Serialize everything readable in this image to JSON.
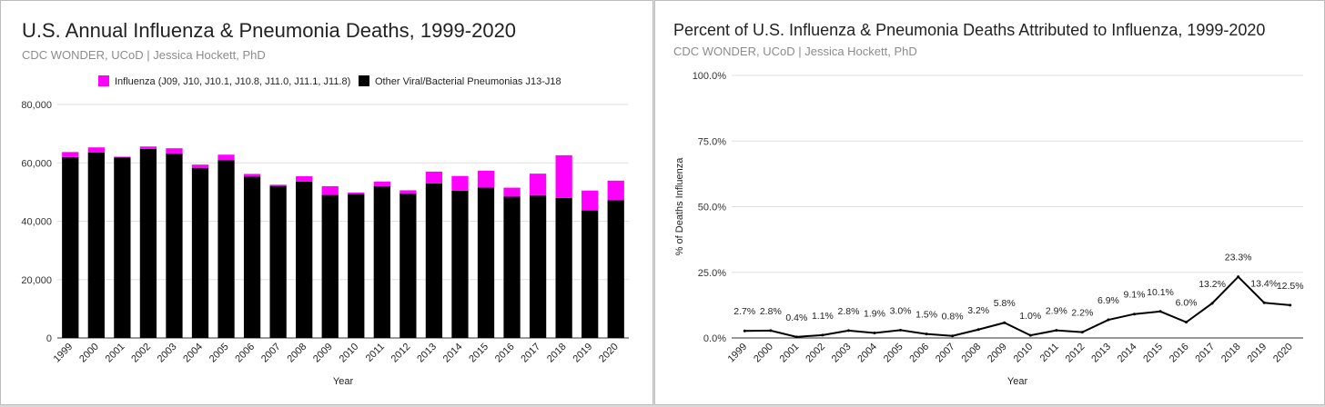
{
  "left": {
    "title": "U.S. Annual Influenza & Pneumonia Deaths, 1999-2020",
    "subtitle": "CDC WONDER, UCoD | Jessica Hockett, PhD"
  },
  "right": {
    "title": "Percent of U.S. Influenza & Pneumonia Deaths Attributed to Influenza, 1999-2020",
    "subtitle": "CDC WONDER, UCoD | Jessica Hockett, PhD"
  },
  "colors": {
    "influenza": "#ff00ff",
    "other": "#000000",
    "line": "#000000",
    "grid": "#e0e0e0"
  },
  "chart_data": [
    {
      "type": "bar",
      "stacked": true,
      "title": "U.S. Annual Influenza & Pneumonia Deaths, 1999-2020",
      "xlabel": "Year",
      "ylabel": "",
      "ylim": [
        0,
        80000
      ],
      "yticks": [
        "0",
        "20,000",
        "40,000",
        "60,000",
        "80,000"
      ],
      "legend_position": "top",
      "categories": [
        "1999",
        "2000",
        "2001",
        "2002",
        "2003",
        "2004",
        "2005",
        "2006",
        "2007",
        "2008",
        "2009",
        "2010",
        "2011",
        "2012",
        "2013",
        "2014",
        "2015",
        "2016",
        "2017",
        "2018",
        "2019",
        "2020"
      ],
      "series": [
        {
          "name": "Other Viral/Bacterial Pneumonias J13-J18",
          "values": [
            62000,
            63500,
            61800,
            64800,
            63200,
            58300,
            60900,
            55300,
            52100,
            53600,
            49000,
            49300,
            52000,
            49500,
            53000,
            50500,
            51500,
            48400,
            48900,
            48000,
            43700,
            47200
          ]
        },
        {
          "name": "Influenza (J09, J10, J10.1, J10.8, J11.0, J11.1, J11.8)",
          "values": [
            1700,
            1800,
            300,
            800,
            1800,
            1100,
            1900,
            900,
            400,
            1800,
            3000,
            500,
            1600,
            1100,
            4000,
            5000,
            5800,
            3100,
            7400,
            14600,
            6800,
            6700
          ]
        }
      ]
    },
    {
      "type": "line",
      "title": "Percent of U.S. Influenza & Pneumonia Deaths Attributed to Influenza, 1999-2020",
      "xlabel": "Year",
      "ylabel": "% of Deaths Influenza",
      "ylim": [
        0,
        100
      ],
      "yticks": [
        "0.0%",
        "25.0%",
        "50.0%",
        "75.0%",
        "100.0%"
      ],
      "categories": [
        "1999",
        "2000",
        "2001",
        "2002",
        "2003",
        "2004",
        "2005",
        "2006",
        "2007",
        "2008",
        "2009",
        "2010",
        "2011",
        "2012",
        "2013",
        "2014",
        "2015",
        "2016",
        "2017",
        "2018",
        "2019",
        "2020"
      ],
      "values": [
        2.7,
        2.8,
        0.4,
        1.1,
        2.8,
        1.9,
        3.0,
        1.5,
        0.8,
        3.2,
        5.8,
        1.0,
        2.9,
        2.2,
        6.9,
        9.1,
        10.1,
        6.0,
        13.2,
        23.3,
        13.4,
        12.5
      ],
      "data_labels": [
        "2.7%",
        "2.8%",
        "0.4%",
        "1.1%",
        "2.8%",
        "1.9%",
        "3.0%",
        "1.5%",
        "0.8%",
        "3.2%",
        "5.8%",
        "1.0%",
        "2.9%",
        "2.2%",
        "6.9%",
        "9.1%",
        "10.1%",
        "6.0%",
        "13.2%",
        "23.3%",
        "13.4%",
        "12.5%"
      ]
    }
  ]
}
